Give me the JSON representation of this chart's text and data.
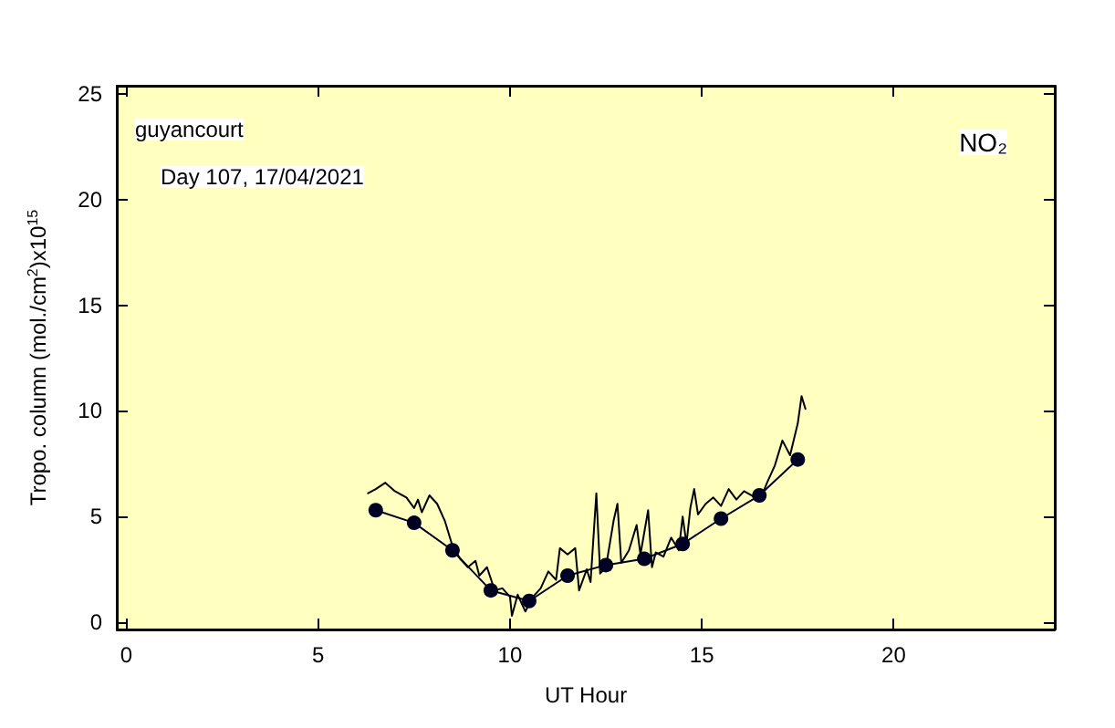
{
  "chart_data": {
    "type": "line",
    "xlabel": "UT Hour",
    "ylabel": "Tropo. column (mol./cm$^{2}$)x10$^{15}$",
    "annotations": [
      "guyancourt",
      "Day 107, 17/04/2021",
      "NO₂"
    ],
    "xlim": [
      -0.25,
      24.2
    ],
    "xticks": [
      0,
      5,
      10,
      15,
      20
    ],
    "ylim": [
      -0.35,
      25.4
    ],
    "yticks": [
      0,
      5,
      10,
      15,
      20,
      25
    ],
    "series": [
      {
        "color": "#000000",
        "marker": "none",
        "x": [
          6.3,
          6.5,
          6.75,
          7.0,
          7.3,
          7.5,
          7.6,
          7.7,
          7.9,
          8.1,
          8.3,
          8.5,
          8.7,
          8.9,
          9.1,
          9.2,
          9.4,
          9.6,
          9.8,
          10.0,
          10.05,
          10.2,
          10.4,
          10.6,
          10.8,
          11.0,
          11.2,
          11.3,
          11.5,
          11.7,
          11.8,
          12.0,
          12.1,
          12.25,
          12.35,
          12.5,
          12.7,
          12.8,
          12.9,
          13.1,
          13.3,
          13.4,
          13.6,
          13.7,
          13.8,
          14.0,
          14.2,
          14.4,
          14.5,
          14.6,
          14.7,
          14.8,
          14.9,
          15.1,
          15.3,
          15.5,
          15.7,
          15.9,
          16.1,
          16.3,
          16.5,
          16.7,
          16.9,
          17.1,
          17.3,
          17.5,
          17.6,
          17.7
        ],
        "values": [
          6.1,
          6.3,
          6.6,
          6.2,
          5.9,
          5.4,
          5.8,
          5.2,
          6.0,
          5.6,
          4.8,
          3.6,
          3.0,
          2.6,
          2.9,
          2.2,
          2.6,
          1.5,
          1.6,
          1.2,
          0.3,
          1.3,
          0.5,
          1.2,
          1.6,
          2.4,
          2.0,
          3.5,
          3.2,
          3.5,
          1.5,
          2.5,
          1.9,
          6.1,
          2.3,
          2.6,
          4.8,
          5.6,
          2.8,
          3.4,
          4.6,
          3.2,
          5.3,
          2.6,
          3.3,
          3.1,
          4.0,
          3.4,
          5.0,
          3.7,
          5.4,
          6.3,
          5.1,
          5.6,
          5.9,
          5.5,
          6.3,
          5.8,
          6.2,
          6.0,
          5.7,
          6.6,
          7.4,
          8.6,
          7.9,
          9.4,
          10.7,
          10.1
        ]
      },
      {
        "color": "#000022",
        "marker": "circle",
        "x": [
          6.5,
          7.5,
          8.5,
          9.5,
          10.5,
          11.5,
          12.5,
          13.5,
          14.5,
          15.5,
          16.5,
          17.5
        ],
        "values": [
          5.3,
          4.7,
          3.4,
          1.5,
          1.0,
          2.2,
          2.7,
          3.0,
          3.7,
          4.9,
          6.0,
          7.7
        ]
      }
    ]
  }
}
